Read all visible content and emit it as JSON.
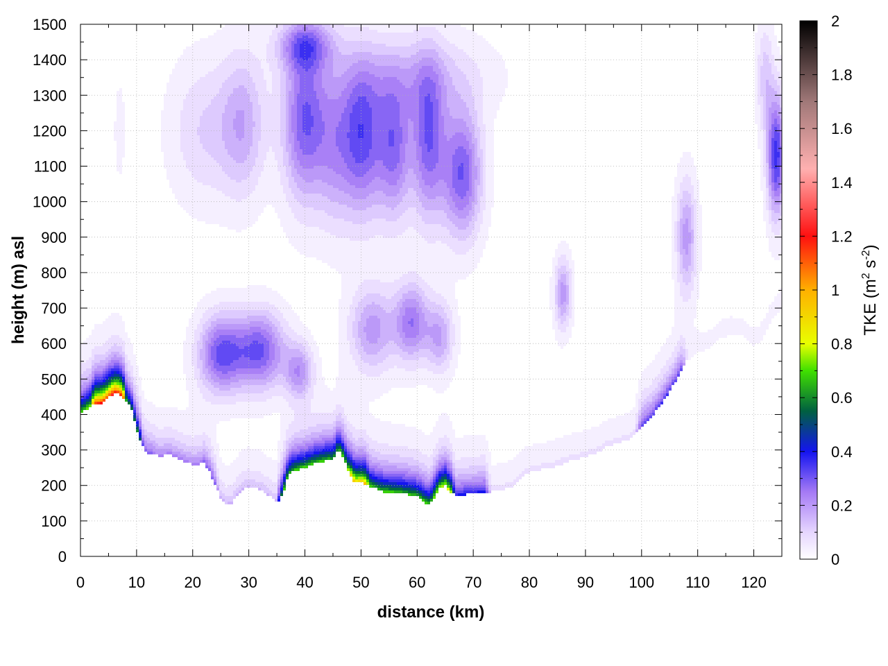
{
  "chart_data": {
    "type": "heatmap",
    "xlabel": "distance (km)",
    "ylabel": "height (m) asl",
    "xlim": [
      0,
      125
    ],
    "ylim": [
      0,
      1500
    ],
    "x_ticks": [
      0,
      10,
      20,
      30,
      40,
      50,
      60,
      70,
      80,
      90,
      100,
      110,
      120
    ],
    "y_ticks": [
      0,
      100,
      200,
      300,
      400,
      500,
      600,
      700,
      800,
      900,
      1000,
      1100,
      1200,
      1300,
      1400,
      1500
    ],
    "grid": true,
    "colorbar": {
      "label_main": "TKE (m",
      "label_sup1": "2",
      "label_mid": " s",
      "label_sup2": "-2",
      "label_end": ")",
      "range": [
        0,
        2
      ],
      "ticks": [
        "0",
        "0.2",
        "0.4",
        "0.6",
        "0.8",
        "1",
        "1.2",
        "1.4",
        "1.6",
        "1.8",
        "2"
      ],
      "stops": [
        {
          "value": 0.0,
          "color": "#ffffff"
        },
        {
          "value": 0.1,
          "color": "#e6d6ff"
        },
        {
          "value": 0.25,
          "color": "#a57af5"
        },
        {
          "value": 0.4,
          "color": "#1414f0"
        },
        {
          "value": 0.55,
          "color": "#006040"
        },
        {
          "value": 0.7,
          "color": "#40e000"
        },
        {
          "value": 0.8,
          "color": "#e8ff00"
        },
        {
          "value": 1.0,
          "color": "#ffb000"
        },
        {
          "value": 1.2,
          "color": "#ff1010"
        },
        {
          "value": 1.45,
          "color": "#ffb0b0"
        },
        {
          "value": 1.7,
          "color": "#a07878"
        },
        {
          "value": 2.0,
          "color": "#000000"
        }
      ]
    },
    "terrain": [
      [
        0,
        400
      ],
      [
        2,
        425
      ],
      [
        4,
        430
      ],
      [
        6,
        460
      ],
      [
        7,
        455
      ],
      [
        8,
        440
      ],
      [
        9,
        420
      ],
      [
        10,
        360
      ],
      [
        11,
        310
      ],
      [
        12,
        290
      ],
      [
        14,
        282
      ],
      [
        16,
        285
      ],
      [
        18,
        270
      ],
      [
        20,
        258
      ],
      [
        22,
        262
      ],
      [
        23,
        240
      ],
      [
        24,
        200
      ],
      [
        25,
        165
      ],
      [
        26,
        145
      ],
      [
        27,
        150
      ],
      [
        28,
        172
      ],
      [
        29,
        190
      ],
      [
        30,
        195
      ],
      [
        32,
        188
      ],
      [
        34,
        165
      ],
      [
        35,
        150
      ],
      [
        36,
        170
      ],
      [
        37,
        225
      ],
      [
        38,
        240
      ],
      [
        40,
        250
      ],
      [
        42,
        262
      ],
      [
        44,
        270
      ],
      [
        45,
        268
      ],
      [
        46,
        300
      ],
      [
        47,
        275
      ],
      [
        48,
        230
      ],
      [
        49,
        205
      ],
      [
        50,
        210
      ],
      [
        52,
        195
      ],
      [
        54,
        182
      ],
      [
        56,
        180
      ],
      [
        58,
        175
      ],
      [
        60,
        168
      ],
      [
        61,
        158
      ],
      [
        62,
        145
      ],
      [
        63,
        160
      ],
      [
        64,
        190
      ],
      [
        65,
        200
      ],
      [
        66,
        180
      ],
      [
        67,
        170
      ],
      [
        70,
        178
      ],
      [
        74,
        183
      ],
      [
        77,
        195
      ],
      [
        79,
        230
      ],
      [
        81,
        240
      ],
      [
        84,
        250
      ],
      [
        88,
        272
      ],
      [
        92,
        290
      ],
      [
        94,
        310
      ],
      [
        96,
        320
      ],
      [
        98,
        330
      ],
      [
        100,
        365
      ],
      [
        102,
        395
      ],
      [
        104,
        440
      ],
      [
        106,
        490
      ],
      [
        108,
        550
      ],
      [
        110,
        575
      ],
      [
        112,
        585
      ],
      [
        114,
        615
      ],
      [
        116,
        625
      ],
      [
        118,
        620
      ],
      [
        119,
        605
      ],
      [
        120,
        595
      ],
      [
        121,
        600
      ],
      [
        122,
        625
      ],
      [
        123,
        660
      ],
      [
        125,
        700
      ]
    ],
    "surface_layer": [
      {
        "x0": 0,
        "x1": 2.5,
        "peak": 0.75
      },
      {
        "x0": 2.5,
        "x1": 7.5,
        "peak": 1.25
      },
      {
        "x0": 7.5,
        "x1": 10.5,
        "peak": 0.6
      },
      {
        "x0": 10.5,
        "x1": 13,
        "peak": 0.3
      },
      {
        "x0": 13,
        "x1": 22,
        "peak": 0.25
      },
      {
        "x0": 22,
        "x1": 24,
        "peak": 0.3
      },
      {
        "x0": 24,
        "x1": 36,
        "peak": 0.15
      },
      {
        "x0": 36,
        "x1": 48,
        "peak": 0.7
      },
      {
        "x0": 48,
        "x1": 51,
        "peak": 0.95
      },
      {
        "x0": 51,
        "x1": 63,
        "peak": 0.68
      },
      {
        "x0": 63,
        "x1": 66,
        "peak": 0.8
      },
      {
        "x0": 66,
        "x1": 72,
        "peak": 0.4
      },
      {
        "x0": 72,
        "x1": 100,
        "peak": 0.08
      },
      {
        "x0": 100,
        "x1": 107,
        "peak": 0.35
      },
      {
        "x0": 107,
        "x1": 125,
        "peak": 0.05
      }
    ],
    "blobs": [
      {
        "x": 40,
        "y": 1230,
        "rx": 4,
        "ry": 230,
        "value": 0.3
      },
      {
        "x": 50,
        "y": 1180,
        "rx": 4,
        "ry": 220,
        "value": 0.32
      },
      {
        "x": 56,
        "y": 1150,
        "rx": 3,
        "ry": 200,
        "value": 0.25
      },
      {
        "x": 62,
        "y": 1170,
        "rx": 3,
        "ry": 220,
        "value": 0.28
      },
      {
        "x": 68,
        "y": 1080,
        "rx": 3.5,
        "ry": 180,
        "value": 0.3
      },
      {
        "x": 29,
        "y": 1220,
        "rx": 4,
        "ry": 200,
        "value": 0.16
      },
      {
        "x": 22,
        "y": 1200,
        "rx": 6,
        "ry": 200,
        "value": 0.1
      },
      {
        "x": 45,
        "y": 1150,
        "rx": 3,
        "ry": 220,
        "value": 0.13
      },
      {
        "x": 60,
        "y": 1350,
        "rx": 12,
        "ry": 120,
        "value": 0.12
      },
      {
        "x": 40,
        "y": 1440,
        "rx": 5,
        "ry": 70,
        "value": 0.22
      },
      {
        "x": 25,
        "y": 570,
        "rx": 4,
        "ry": 110,
        "value": 0.3
      },
      {
        "x": 32,
        "y": 580,
        "rx": 4.5,
        "ry": 110,
        "value": 0.3
      },
      {
        "x": 39,
        "y": 520,
        "rx": 2.5,
        "ry": 80,
        "value": 0.2
      },
      {
        "x": 52,
        "y": 640,
        "rx": 4,
        "ry": 120,
        "value": 0.2
      },
      {
        "x": 59,
        "y": 660,
        "rx": 3,
        "ry": 110,
        "value": 0.25
      },
      {
        "x": 64,
        "y": 620,
        "rx": 2.5,
        "ry": 100,
        "value": 0.18
      },
      {
        "x": 86,
        "y": 740,
        "rx": 1.5,
        "ry": 100,
        "value": 0.2
      },
      {
        "x": 108,
        "y": 900,
        "rx": 1.8,
        "ry": 160,
        "value": 0.2
      },
      {
        "x": 124,
        "y": 1130,
        "rx": 1.6,
        "ry": 170,
        "value": 0.36
      },
      {
        "x": 122,
        "y": 1350,
        "rx": 1.5,
        "ry": 150,
        "value": 0.12
      },
      {
        "x": 7,
        "y": 1200,
        "rx": 1,
        "ry": 150,
        "value": 0.04
      }
    ]
  }
}
